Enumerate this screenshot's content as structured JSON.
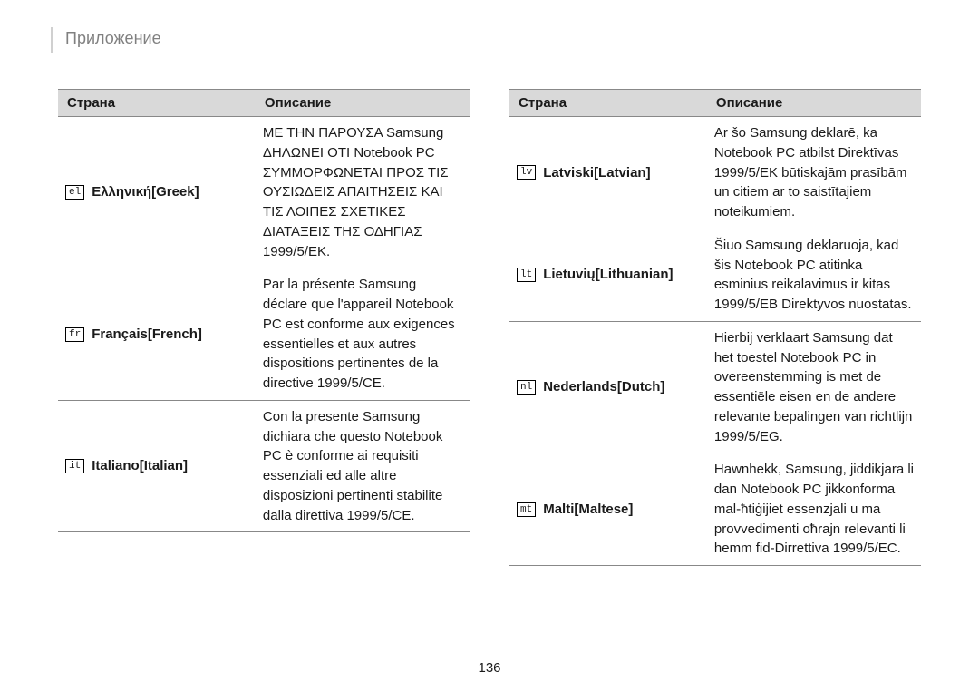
{
  "section_title": "Приложение",
  "page_number": "136",
  "left_table": {
    "header_country": "Страна",
    "header_desc": "Описание",
    "rows": [
      {
        "code": "el",
        "label": "Ελληνική[Greek]",
        "desc": "ΜΕ ΤΗΝ ΠΑΡΟΥΣΑ Samsung ΔΗΛΩΝΕΙ ΟΤΙ Notebook PC ΣΥΜΜΟΡΦΩΝΕΤΑΙ ΠΡΟΣ ΤΙΣ ΟΥΣΙΩΔΕΙΣ ΑΠΑΙΤΗΣΕΙΣ ΚΑΙ ΤΙΣ ΛΟΙΠΕΣ ΣΧΕΤΙΚΕΣ ΔΙΑΤΑΞΕΙΣ ΤΗΣ ΟΔΗΓΙΑΣ 1999/5/ΕΚ."
      },
      {
        "code": "fr",
        "label": "Français[French]",
        "desc": "Par la présente Samsung déclare que l'appareil Notebook PC est conforme aux exigences essentielles et aux autres dispositions pertinentes de la directive 1999/5/CE."
      },
      {
        "code": "it",
        "label": "Italiano[Italian]",
        "desc": "Con la presente Samsung dichiara che questo Notebook PC è conforme ai requisiti essenziali ed alle altre disposizioni pertinenti stabilite dalla direttiva 1999/5/CE."
      }
    ]
  },
  "right_table": {
    "header_country": "Страна",
    "header_desc": "Описание",
    "rows": [
      {
        "code": "lv",
        "label": "Latviski[Latvian]",
        "desc": "Ar šo Samsung deklarē, ka Notebook PC atbilst Direktīvas 1999/5/EK būtiskajām prasībām un citiem ar to saistītajiem noteikumiem."
      },
      {
        "code": "lt",
        "label": "Lietuvių[Lithuanian]",
        "desc": "Šiuo Samsung deklaruoja, kad šis Notebook PC atitinka esminius reikalavimus ir kitas 1999/5/EB Direktyvos nuostatas."
      },
      {
        "code": "nl",
        "label": "Nederlands[Dutch]",
        "desc": "Hierbij verklaart Samsung dat het toestel Notebook PC in overeenstemming is met de essentiële eisen en de andere relevante bepalingen van richtlijn 1999/5/EG."
      },
      {
        "code": "mt",
        "label": "Malti[Maltese]",
        "desc": "Hawnhekk, Samsung, jiddikjara li dan Notebook PC jikkonforma mal-ħtiġijiet essenzjali u ma provvedimenti oħrajn relevanti li hemm fid-Dirrettiva 1999/5/EC."
      }
    ]
  }
}
